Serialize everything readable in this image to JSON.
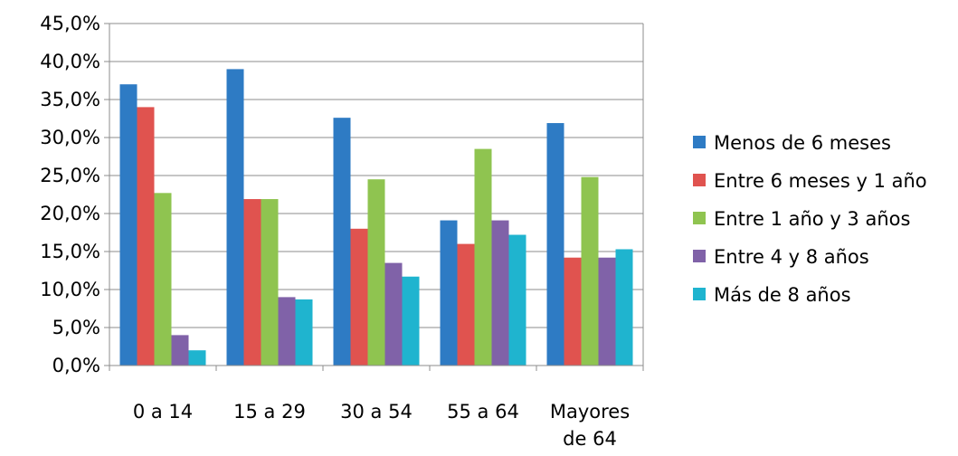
{
  "chart_data": {
    "type": "bar",
    "categories": [
      [
        "0 a 14"
      ],
      [
        "15 a 29"
      ],
      [
        "30 a 54"
      ],
      [
        "55 a 64"
      ],
      [
        "Mayores",
        "de 64"
      ]
    ],
    "series": [
      {
        "name": "Menos de 6 meses",
        "color": "#2e7bc4",
        "values": [
          37.0,
          39.0,
          32.6,
          19.1,
          31.9
        ]
      },
      {
        "name": "Entre 6 meses y 1 año",
        "color": "#e0534f",
        "values": [
          34.0,
          21.9,
          18.0,
          16.0,
          14.2
        ]
      },
      {
        "name": "Entre 1 año y 3 años",
        "color": "#8fc450",
        "values": [
          22.7,
          21.9,
          24.5,
          28.5,
          24.8
        ]
      },
      {
        "name": "Entre 4 y 8 años",
        "color": "#8062a8",
        "values": [
          4.0,
          9.0,
          13.5,
          19.1,
          14.2
        ]
      },
      {
        "name": "Más de 8 años",
        "color": "#1fb4cf",
        "values": [
          2.0,
          8.7,
          11.7,
          17.2,
          15.3
        ]
      }
    ],
    "yticks": [
      "0,0%",
      "5,0%",
      "10,0%",
      "15,0%",
      "20,0%",
      "25,0%",
      "30,0%",
      "35,0%",
      "40,0%",
      "45,0%"
    ],
    "ylim": [
      0,
      45
    ],
    "title": "",
    "xlabel": "",
    "ylabel": "",
    "grid": true,
    "legend_position": "right"
  }
}
